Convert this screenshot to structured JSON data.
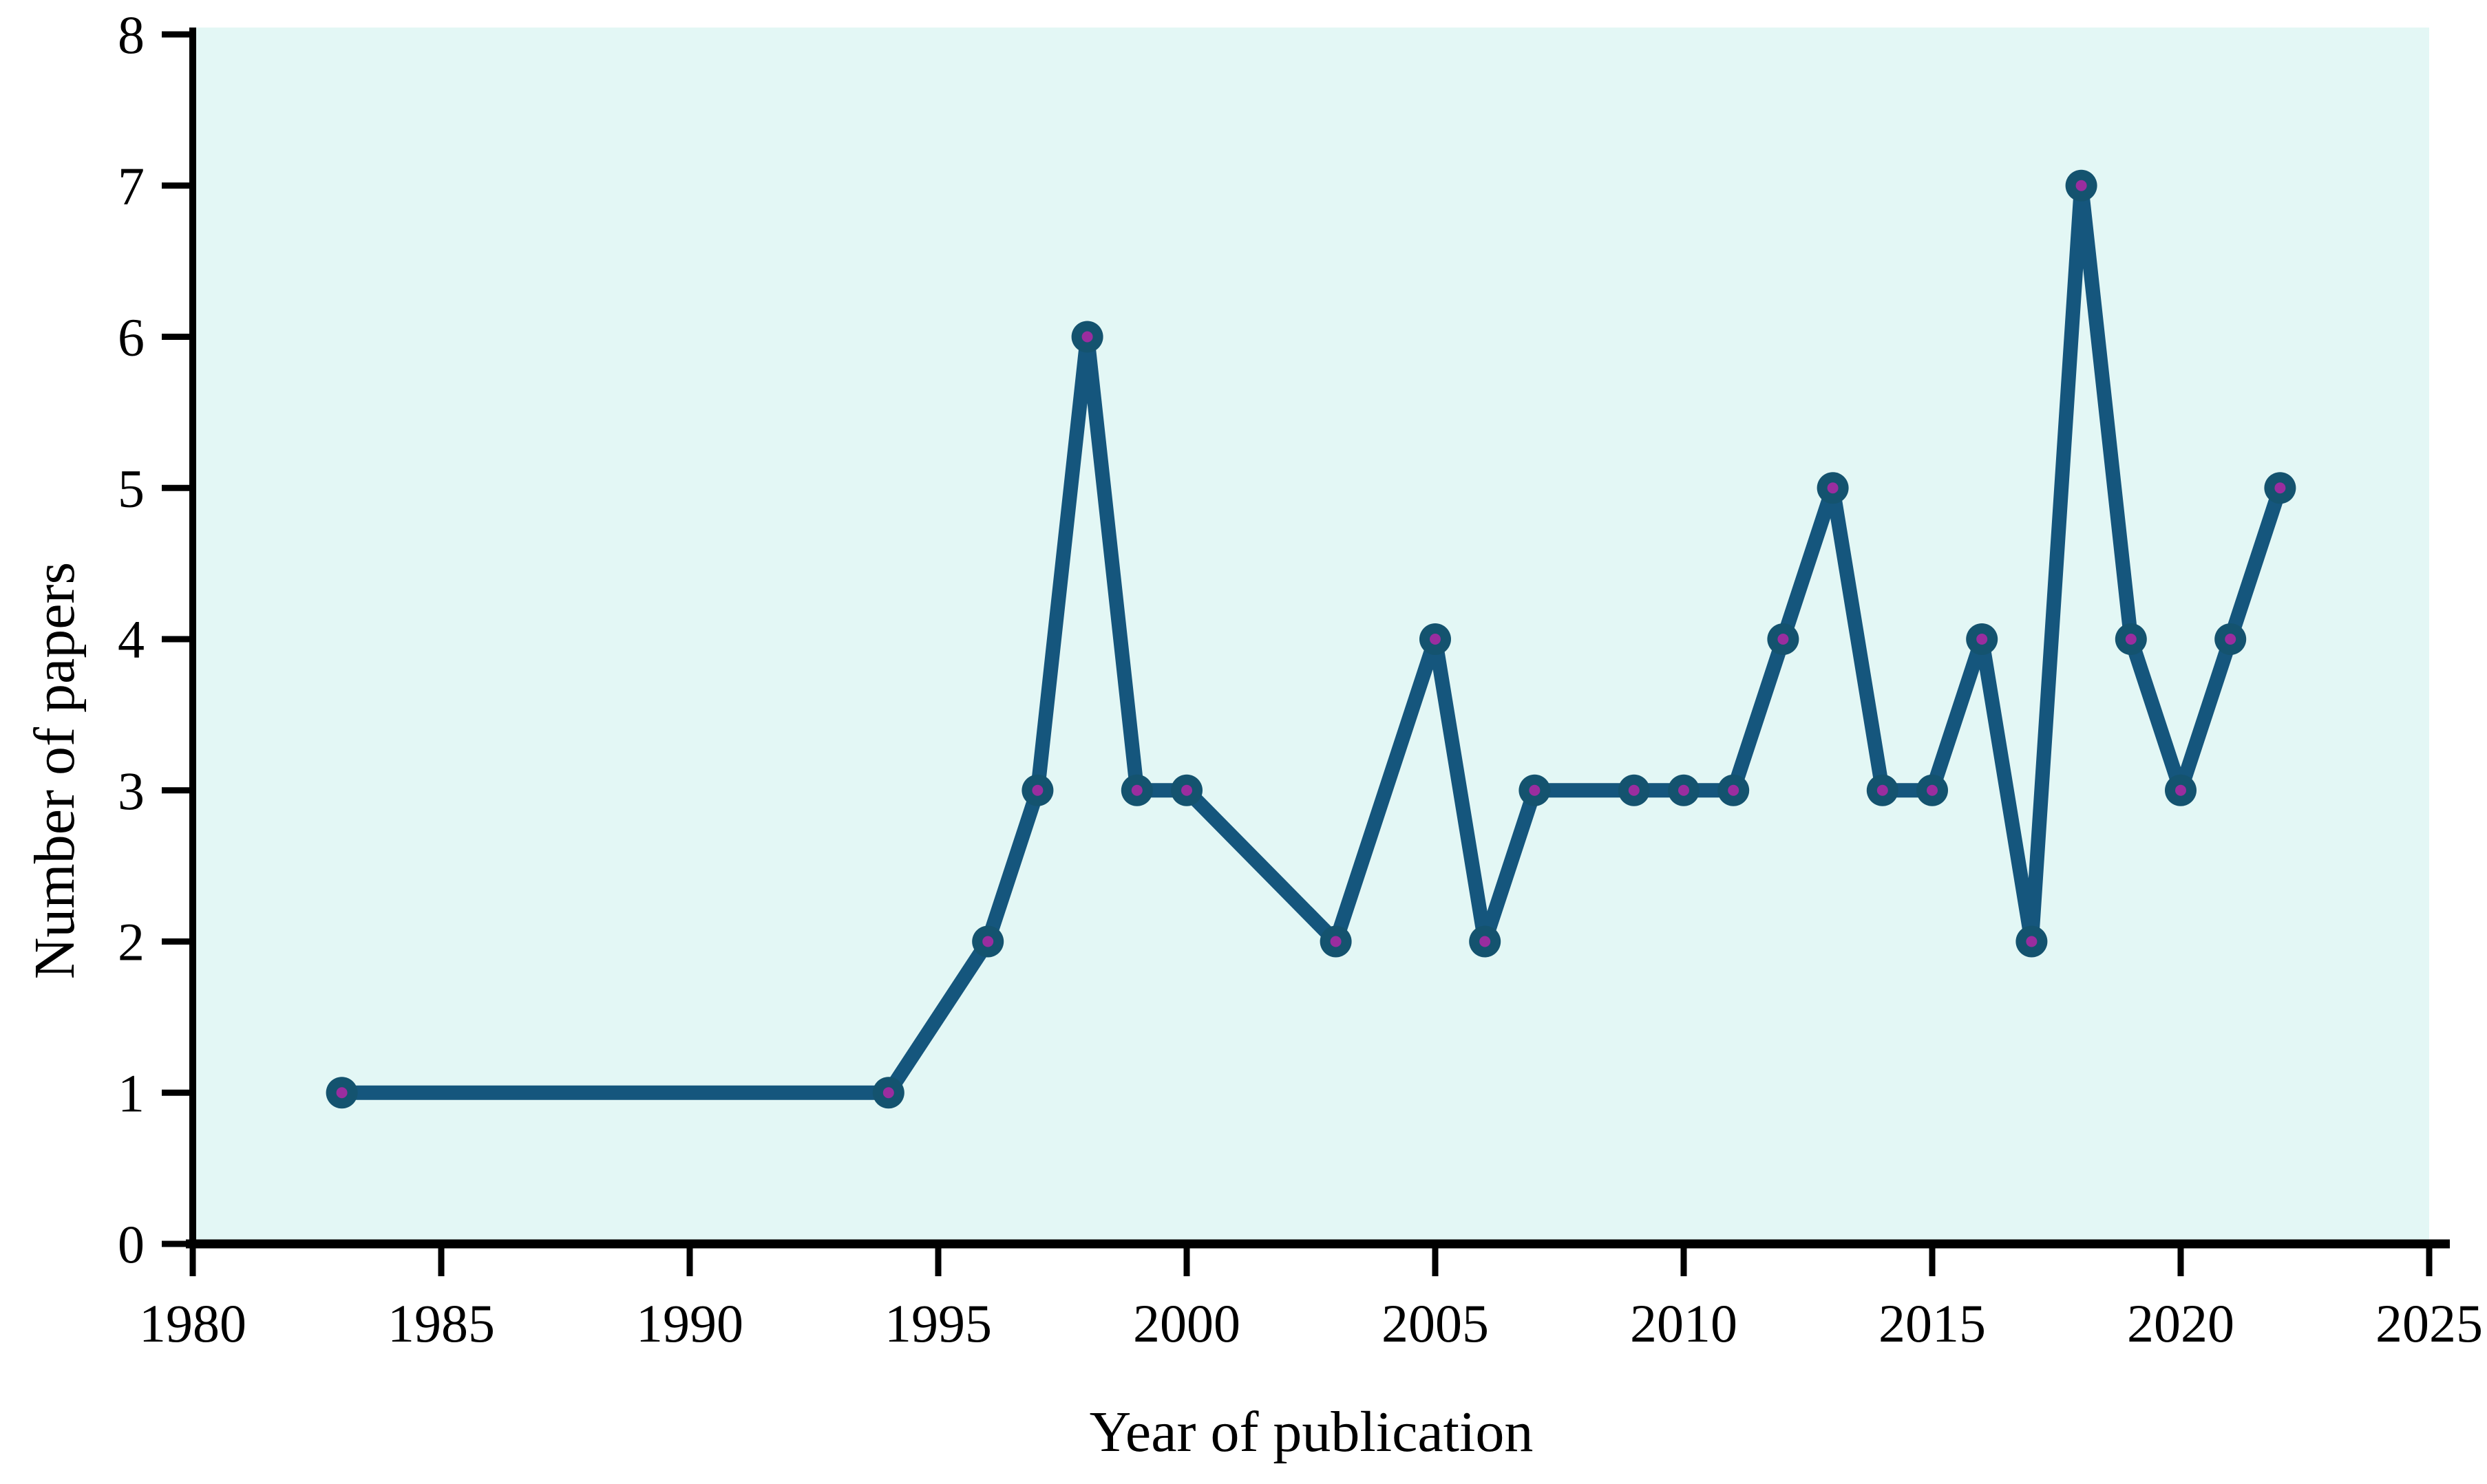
{
  "chart_data": {
    "type": "line",
    "title": "",
    "xlabel": "Year of publication",
    "ylabel": "Number of papers",
    "x": [
      1983,
      1994,
      1996,
      1997,
      1998,
      1999,
      2000,
      2003,
      2005,
      2006,
      2007,
      2009,
      2010,
      2011,
      2012,
      2013,
      2014,
      2015,
      2016,
      2017,
      2018,
      2019,
      2020,
      2021,
      2022
    ],
    "y": [
      1,
      1,
      2,
      3,
      6,
      3,
      3,
      2,
      4,
      2,
      3,
      3,
      3,
      3,
      4,
      5,
      3,
      3,
      4,
      2,
      7,
      4,
      3,
      4,
      5
    ],
    "xlim": [
      1980,
      2025
    ],
    "ylim": [
      0,
      8
    ],
    "x_ticks": [
      1980,
      1985,
      1990,
      1995,
      2000,
      2005,
      2010,
      2015,
      2020,
      2025
    ],
    "y_ticks": [
      0,
      1,
      2,
      3,
      4,
      5,
      6,
      7,
      8
    ],
    "grid": false,
    "legend": "none",
    "marker": "circle-with-center-dot",
    "colors": {
      "line": "#15567D",
      "marker_fill": "#14536F",
      "marker_center": "#9A2D9F",
      "plot_bg": "#E3F7F5",
      "axis": "#000000",
      "text": "#000000",
      "page_bg": "#FFFFFF"
    }
  }
}
